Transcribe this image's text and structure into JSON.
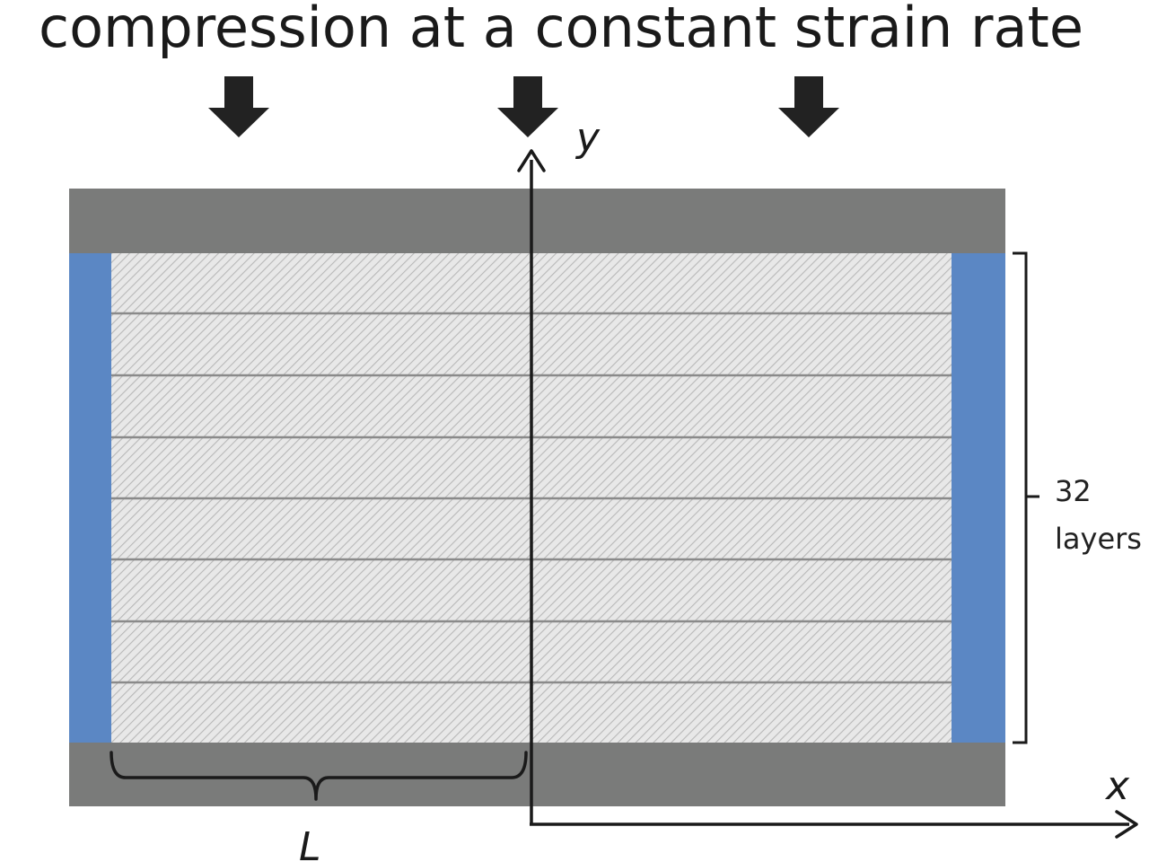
{
  "title": "compression at a constant strain rate",
  "axes": {
    "x_label": "x",
    "y_label": "y"
  },
  "layers": {
    "count_label": "32",
    "unit_label": "layers"
  },
  "length_label": "L",
  "colors": {
    "plate": "#7a7b7a",
    "side_wall": "#5b87c4",
    "layer_fill": "#e6e6e6",
    "layer_hatch": "#b8b8b8",
    "layer_line": "#8a8a8a",
    "arrow": "#222222",
    "text": "#1a1a1a"
  },
  "icons": {
    "load_arrow": "arrow-down-icon",
    "axis_arrow": "arrow-head-icon"
  }
}
